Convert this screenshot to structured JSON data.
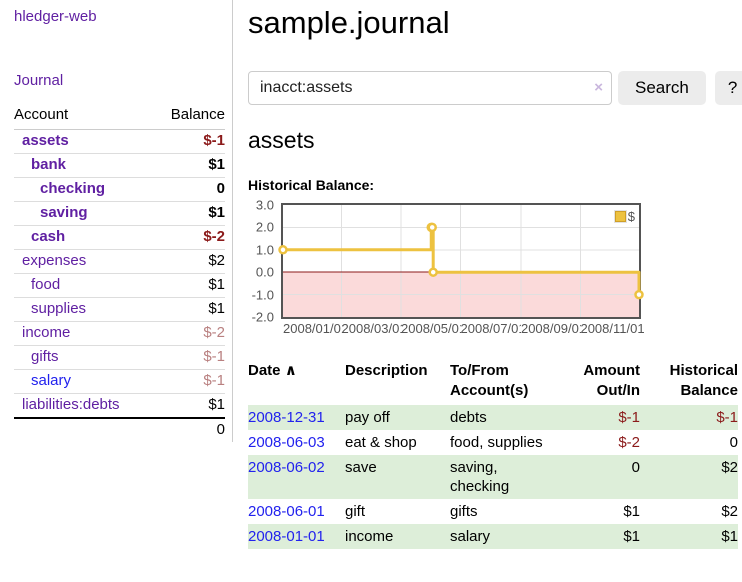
{
  "colors": {
    "link_purple": "#6020a2",
    "link_blue": "#2222ee",
    "negative_strong": "#8b1a1a",
    "negative_weak": "#b98080",
    "row_shade_green": "#ddeed9",
    "button_bg": "#ececec",
    "chart_border": "#545454",
    "chart_grid": "#e0e0e0",
    "series_gold": "#edc240",
    "negative_region_pink": "#fbdada",
    "zero_line_red": "#8b1a1a"
  },
  "sidebar": {
    "app_title": "hledger-web",
    "journal_link": "Journal",
    "accounts_table": {
      "headers": [
        "Account",
        "Balance"
      ],
      "rows": [
        {
          "name": "assets",
          "depth": 1,
          "bold": true,
          "link_color": "purple",
          "balance": "$-1",
          "balance_style": "neg-strong"
        },
        {
          "name": "bank",
          "depth": 2,
          "bold": true,
          "link_color": "purple",
          "balance": "$1",
          "balance_style": "strong"
        },
        {
          "name": "checking",
          "depth": 3,
          "bold": true,
          "link_color": "purple",
          "balance": "0",
          "balance_style": "strong"
        },
        {
          "name": "saving",
          "depth": 3,
          "bold": true,
          "link_color": "purple",
          "balance": "$1",
          "balance_style": "strong"
        },
        {
          "name": "cash",
          "depth": 2,
          "bold": true,
          "link_color": "purple",
          "balance": "$-2",
          "balance_style": "neg-strong"
        },
        {
          "name": "expenses",
          "depth": 1,
          "bold": false,
          "link_color": "purple",
          "balance": "$2",
          "balance_style": "plain"
        },
        {
          "name": "food",
          "depth": 2,
          "bold": false,
          "link_color": "purple",
          "balance": "$1",
          "balance_style": "plain"
        },
        {
          "name": "supplies",
          "depth": 2,
          "bold": false,
          "link_color": "purple",
          "balance": "$1",
          "balance_style": "plain"
        },
        {
          "name": "income",
          "depth": 1,
          "bold": false,
          "link_color": "purple",
          "balance": "$-2",
          "balance_style": "neg-weak"
        },
        {
          "name": "gifts",
          "depth": 2,
          "bold": false,
          "link_color": "purple",
          "balance": "$-1",
          "balance_style": "neg-weak"
        },
        {
          "name": "salary",
          "depth": 2,
          "bold": false,
          "link_color": "blue",
          "balance": "$-1",
          "balance_style": "neg-weak"
        },
        {
          "name": "liabilities:debts",
          "depth": 1,
          "bold": false,
          "link_color": "purple",
          "balance": "$1",
          "balance_style": "plain"
        }
      ],
      "total": "0"
    }
  },
  "main": {
    "title": "sample.journal",
    "search": {
      "value": "inacct:assets",
      "clear_icon": "×",
      "button_label": "Search",
      "help_label": "?"
    },
    "account_heading": "assets",
    "register": {
      "headers": [
        "Date",
        "Description",
        "To/From Account(s)",
        "Amount Out/In",
        "Historical Balance"
      ],
      "sort_icon": "∧",
      "rows": [
        {
          "date": "2008-12-31",
          "description": "pay off",
          "accounts": "debts",
          "amount": "$-1",
          "amount_negative": true,
          "balance": "$-1",
          "balance_negative": true,
          "shaded": true
        },
        {
          "date": "2008-06-03",
          "description": "eat & shop",
          "accounts": "food, supplies",
          "amount": "$-2",
          "amount_negative": true,
          "balance": "0",
          "balance_negative": false,
          "shaded": false
        },
        {
          "date": "2008-06-02",
          "description": "save",
          "accounts": "saving, checking",
          "amount": "0",
          "amount_negative": false,
          "balance": "$2",
          "balance_negative": false,
          "shaded": true
        },
        {
          "date": "2008-06-01",
          "description": "gift",
          "accounts": "gifts",
          "amount": "$1",
          "amount_negative": false,
          "balance": "$2",
          "balance_negative": false,
          "shaded": false
        },
        {
          "date": "2008-01-01",
          "description": "income",
          "accounts": "salary",
          "amount": "$1",
          "amount_negative": false,
          "balance": "$1",
          "balance_negative": false,
          "shaded": true
        }
      ]
    }
  },
  "chart_data": {
    "type": "line",
    "step": true,
    "title": "Historical Balance:",
    "ylim": [
      -2,
      3
    ],
    "xlim_days": [
      0,
      365
    ],
    "grid": true,
    "legend_position": "top-right",
    "series": [
      {
        "name": "$",
        "color": "#edc240",
        "points": [
          {
            "date": "2008-01-01",
            "day": 0,
            "value": 1
          },
          {
            "date": "2008-06-01",
            "day": 152,
            "value": 2
          },
          {
            "date": "2008-06-02",
            "day": 153,
            "value": 2
          },
          {
            "date": "2008-06-03",
            "day": 154,
            "value": 0
          },
          {
            "date": "2008-12-31",
            "day": 365,
            "value": -1
          }
        ]
      }
    ],
    "y_ticks": [
      {
        "value": 3,
        "label": "3.0"
      },
      {
        "value": 2,
        "label": "2.0"
      },
      {
        "value": 1,
        "label": "1.0"
      },
      {
        "value": 0,
        "label": "0.0"
      },
      {
        "value": -1,
        "label": "-1.0"
      },
      {
        "value": -2,
        "label": "-2.0"
      }
    ],
    "x_ticks": [
      {
        "day": 0,
        "label": "2008/01/01"
      },
      {
        "day": 60,
        "label": "2008/03/01"
      },
      {
        "day": 121,
        "label": "2008/05/01"
      },
      {
        "day": 182,
        "label": "2008/07/01"
      },
      {
        "day": 244,
        "label": "2008/09/01"
      },
      {
        "day": 305,
        "label": "2008/11/01"
      }
    ],
    "negative_region_fill": "#fbdada",
    "zero_line_color": "#8b1a1a"
  }
}
